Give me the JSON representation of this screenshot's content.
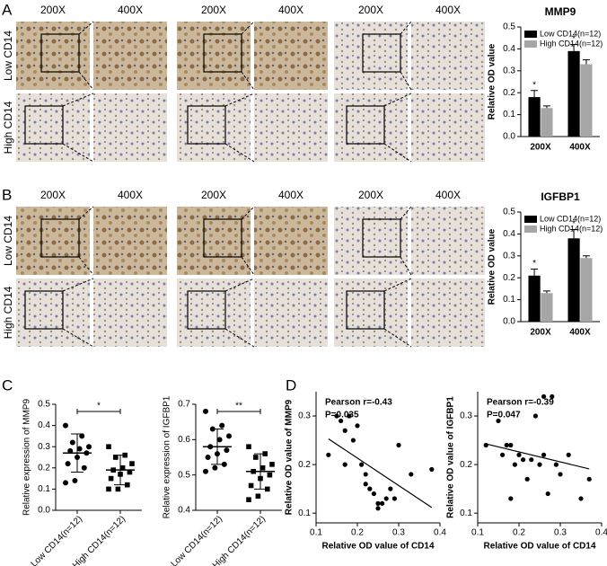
{
  "figure": {
    "panel_labels": [
      "A",
      "B",
      "C",
      "D"
    ],
    "magnifications": [
      "200X",
      "400X"
    ],
    "rows": [
      "Low CD14",
      "High CD14"
    ]
  },
  "chart_data": [
    {
      "type": "bar",
      "title": "MMP9",
      "ylabel": "Relative OD value",
      "categories": [
        "200X",
        "400X"
      ],
      "series": [
        {
          "name": "Low CD14(n=12)",
          "color": "#000000",
          "values": [
            0.18,
            0.39
          ],
          "errors": [
            0.03,
            0.03
          ]
        },
        {
          "name": "High CD14(n=12)",
          "color": "#a6a6a6",
          "values": [
            0.13,
            0.33
          ],
          "errors": [
            0.01,
            0.02
          ]
        }
      ],
      "annotations": [
        "*",
        "*"
      ],
      "ylim": [
        0,
        0.5
      ],
      "yticks": [
        {
          "value": 0,
          "label": "0.0"
        },
        0.1,
        0.2,
        0.3,
        0.4,
        0.5
      ]
    },
    {
      "type": "bar",
      "title": "IGFBP1",
      "ylabel": "Relative OD value",
      "categories": [
        "200X",
        "400X"
      ],
      "series": [
        {
          "name": "Low CD14(n=12)",
          "color": "#000000",
          "values": [
            0.21,
            0.38
          ],
          "errors": [
            0.03,
            0.04
          ]
        },
        {
          "name": "High CD14(n=12)",
          "color": "#a6a6a6",
          "values": [
            0.13,
            0.29
          ],
          "errors": [
            0.01,
            0.01
          ]
        }
      ],
      "annotations": [
        "*",
        "*"
      ],
      "ylim": [
        0,
        0.5
      ],
      "yticks": [
        {
          "value": 0,
          "label": "0.0"
        },
        0.1,
        0.2,
        0.3,
        0.4,
        0.5
      ]
    },
    {
      "type": "strip",
      "ylabel": "Relative expression of MMP9",
      "significance": "*",
      "series": [
        {
          "name": "Low CD14(n=12)",
          "marker": "circle",
          "values": [
            0.4,
            0.35,
            0.32,
            0.3,
            0.29,
            0.28,
            0.27,
            0.25,
            0.22,
            0.2,
            0.14,
            0.13
          ],
          "mean": 0.27,
          "sd": 0.09
        },
        {
          "name": "High CD14(n=12)",
          "marker": "square",
          "values": [
            0.3,
            0.26,
            0.25,
            0.22,
            0.2,
            0.19,
            0.18,
            0.17,
            0.15,
            0.12,
            0.1,
            0.1
          ],
          "mean": 0.19,
          "sd": 0.07
        }
      ],
      "ylim": [
        0,
        0.5
      ],
      "yticks": [
        {
          "value": 0,
          "label": "0.0"
        },
        0.1,
        0.2,
        0.3,
        0.4,
        0.5
      ]
    },
    {
      "type": "strip",
      "ylabel": "Relative expression of IGFBP1",
      "significance": "**",
      "series": [
        {
          "name": "Low CD14(n=12)",
          "marker": "circle",
          "values": [
            0.68,
            0.64,
            0.63,
            0.61,
            0.6,
            0.58,
            0.57,
            0.56,
            0.55,
            0.53,
            0.52,
            0.51
          ],
          "mean": 0.58,
          "sd": 0.05
        },
        {
          "name": "High CD14(n=12)",
          "marker": "square",
          "values": [
            0.58,
            0.56,
            0.55,
            0.53,
            0.52,
            0.51,
            0.5,
            0.49,
            0.47,
            0.46,
            0.44,
            0.43
          ],
          "mean": 0.51,
          "sd": 0.05
        }
      ],
      "ylim": [
        0.4,
        0.7
      ],
      "yticks": [
        0.4,
        0.5,
        0.6,
        0.7
      ]
    },
    {
      "type": "scatter",
      "xlabel": "Relative OD value of CD14",
      "ylabel": "Relative OD value of MMP9",
      "annotations": [
        "Pearson r=-0.43",
        "P=0.035"
      ],
      "x": [
        0.13,
        0.15,
        0.16,
        0.17,
        0.18,
        0.19,
        0.2,
        0.21,
        0.22,
        0.23,
        0.24,
        0.25,
        0.25,
        0.26,
        0.27,
        0.28,
        0.29,
        0.3,
        0.33,
        0.38,
        0.17,
        0.22
      ],
      "values": [
        0.22,
        0.3,
        0.29,
        0.27,
        0.3,
        0.25,
        0.28,
        0.2,
        0.18,
        0.15,
        0.14,
        0.12,
        0.11,
        0.12,
        0.13,
        0.15,
        0.13,
        0.24,
        0.18,
        0.19,
        0.2,
        0.16
      ],
      "xlim": [
        0.1,
        0.4
      ],
      "xticks": [
        0.1,
        0.2,
        0.3,
        0.4
      ],
      "ylim": [
        0.08,
        0.35
      ],
      "yticks": [
        0.1,
        0.2,
        0.3
      ]
    },
    {
      "type": "scatter",
      "xlabel": "Relative OD value of CD14",
      "ylabel": "Relative OD value of IGFBP1",
      "annotations": [
        "Pearson r=-0.39",
        "P=0.047"
      ],
      "x": [
        0.12,
        0.15,
        0.16,
        0.17,
        0.18,
        0.19,
        0.2,
        0.21,
        0.22,
        0.23,
        0.24,
        0.25,
        0.26,
        0.27,
        0.28,
        0.29,
        0.3,
        0.32,
        0.35,
        0.37,
        0.18,
        0.26
      ],
      "values": [
        0.24,
        0.29,
        0.22,
        0.24,
        0.24,
        0.2,
        0.22,
        0.21,
        0.17,
        0.21,
        0.3,
        0.2,
        0.34,
        0.14,
        0.34,
        0.2,
        0.18,
        0.22,
        0.13,
        0.17,
        0.13,
        0.22
      ],
      "xlim": [
        0.1,
        0.4
      ],
      "xticks": [
        0.1,
        0.2,
        0.3,
        0.4
      ],
      "ylim": [
        0.08,
        0.35
      ],
      "yticks": [
        0.1,
        0.2,
        0.3
      ]
    }
  ]
}
